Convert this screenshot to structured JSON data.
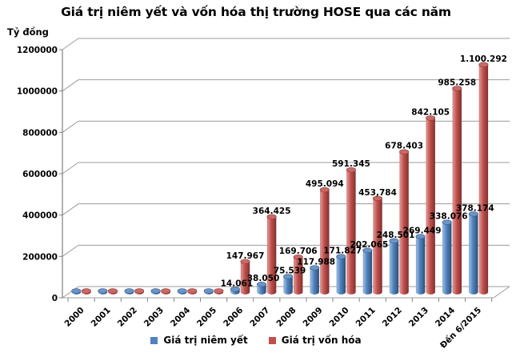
{
  "title": "Giá trị niêm yết và vốn hóa thị trường HOSE qua các năm",
  "axis_label": "Tỷ đồng",
  "colors": {
    "series_blue": "#4F81BD",
    "series_red": "#C0504D",
    "grid": "#9c9c9c",
    "axis": "#808080",
    "text": "#000000"
  },
  "chart_data": {
    "type": "bar",
    "style": "3d-cylinder",
    "title": "Giá trị niêm yết và vốn hóa thị trường HOSE qua các năm",
    "xlabel": "",
    "ylabel": "Tỷ đồng",
    "ylim": [
      0,
      1200000
    ],
    "yticks": [
      0,
      200000,
      400000,
      600000,
      800000,
      1000000,
      1200000
    ],
    "ytick_labels": [
      "0",
      "200000",
      "400000",
      "600000",
      "800000",
      "1000000",
      "1200000"
    ],
    "grid": true,
    "legend_position": "bottom",
    "categories": [
      "2000",
      "2001",
      "2002",
      "2003",
      "2004",
      "2005",
      "2006",
      "2007",
      "2008",
      "2009",
      "2010",
      "2011",
      "2012",
      "2013",
      "2014",
      "Đến 6/2015"
    ],
    "series": [
      {
        "name": "Giá trị niêm yết",
        "color": "#4F81BD",
        "values": [
          6000,
          6000,
          6000,
          6000,
          6000,
          6000,
          14061,
          38050,
          75539,
          117988,
          171827,
          202065,
          248501,
          269449,
          338076,
          378174
        ],
        "labels": [
          "",
          "",
          "",
          "",
          "",
          "",
          "14.061",
          "38.050",
          "75.539",
          "117.988",
          "171.827",
          "202.065",
          "248.501",
          "269.449",
          "338.076",
          "378.174"
        ]
      },
      {
        "name": "Giá trị vốn hóa",
        "color": "#C0504D",
        "values": [
          6000,
          6000,
          6000,
          6000,
          6000,
          6000,
          147967,
          364425,
          169706,
          495094,
          591345,
          453784,
          678403,
          842105,
          985258,
          1100292
        ],
        "labels": [
          "",
          "",
          "",
          "",
          "",
          "",
          "147.967",
          "364.425",
          "169.706",
          "495.094",
          "591.345",
          "453,784",
          "678.403",
          "842.105",
          "985.258",
          "1.100.292"
        ]
      }
    ]
  }
}
